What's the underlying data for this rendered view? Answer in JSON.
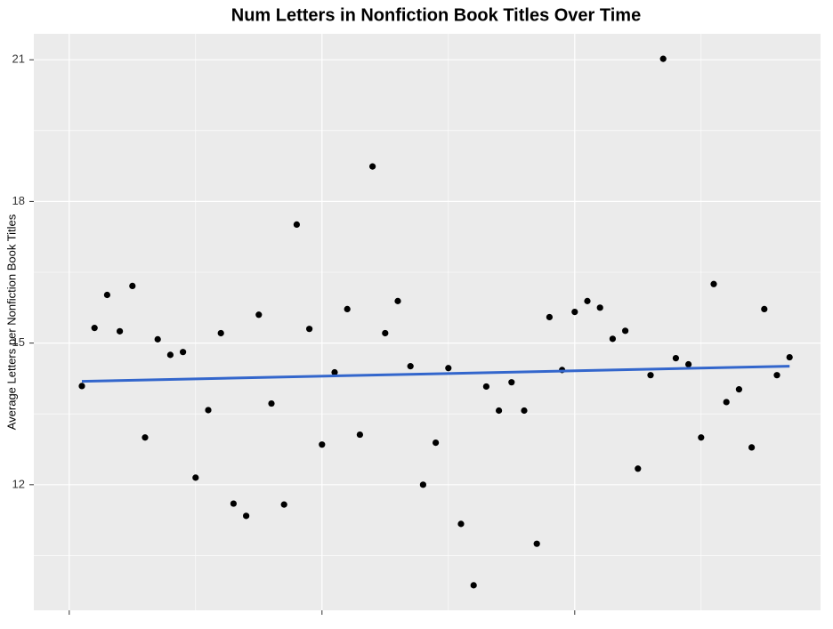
{
  "chart_data": {
    "type": "scatter",
    "title": "Num Letters in Nonfiction Book Titles Over Time",
    "y_label": "Average Letters per Nonfiction Book Titles",
    "categories": [
      null,
      null,
      null,
      null,
      null,
      null,
      null,
      null,
      null,
      null,
      null,
      null,
      null,
      null,
      null,
      null,
      null,
      null,
      null,
      null,
      null,
      null,
      null,
      null,
      null,
      null,
      null,
      null,
      null,
      null,
      null,
      null,
      null,
      null,
      null,
      null,
      null,
      null,
      null,
      null,
      null,
      null,
      null,
      null,
      null,
      null,
      null,
      null,
      null,
      null,
      null,
      null,
      null,
      null,
      null,
      null,
      null
    ],
    "values": [
      14.09,
      15.32,
      16.02,
      15.25,
      16.21,
      13.0,
      15.08,
      14.75,
      14.81,
      12.15,
      13.58,
      15.21,
      11.6,
      11.34,
      15.6,
      13.72,
      11.58,
      17.51,
      15.3,
      12.85,
      14.38,
      15.72,
      13.06,
      18.74,
      15.21,
      15.89,
      14.51,
      12.0,
      12.89,
      14.47,
      11.17,
      9.87,
      14.08,
      13.57,
      14.17,
      13.57,
      10.75,
      15.55,
      14.43,
      15.66,
      15.89,
      15.75,
      15.09,
      15.26,
      12.34,
      14.32,
      21.02,
      14.68,
      14.55,
      13.0,
      16.25,
      13.75,
      14.02,
      12.79,
      15.72,
      14.32,
      14.7
    ],
    "color": "#000000",
    "trend": {
      "color": "#3366cc",
      "values": [
        14.19,
        14.51
      ]
    },
    "ylim": [
      9.34,
      21.55
    ],
    "yticks": [
      12,
      15,
      18,
      21
    ],
    "grid": true
  }
}
